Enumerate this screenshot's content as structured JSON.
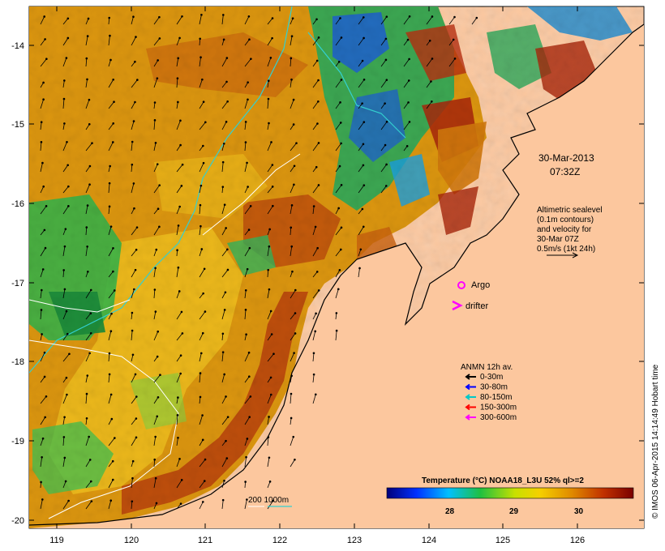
{
  "axes": {
    "lon_ticks": [
      "119",
      "120",
      "121",
      "122",
      "123",
      "124",
      "125",
      "126"
    ],
    "lat_ticks": [
      "-14",
      "-15",
      "-16",
      "-17",
      "-18",
      "-19",
      "-20"
    ]
  },
  "timestamp": {
    "date": "30-Mar-2013",
    "time": "07:32Z"
  },
  "altimetry_note": [
    "Altimetric sealevel",
    "(0.1m contours)",
    "and velocity for",
    "30-Mar 07Z",
    "0.5m/s (1kt 24h)"
  ],
  "markers": {
    "argo": "Argo",
    "drifter": "drifter"
  },
  "anmn": {
    "title": "ANMN 12h av.",
    "items": [
      {
        "label": "0-30m",
        "color": "#000000"
      },
      {
        "label": "30-80m",
        "color": "#0000ff"
      },
      {
        "label": "80-150m",
        "color": "#00c8c8"
      },
      {
        "label": "150-300m",
        "color": "#ff0000"
      },
      {
        "label": "300-600m",
        "color": "#ff00ff"
      }
    ]
  },
  "colorbar": {
    "title": "Temperature (°C) NOAA18_L3U 52% ql>=2",
    "ticks": [
      "28",
      "29",
      "30"
    ]
  },
  "depth_legend": "200 1000m",
  "credit": "© IMOS 06-Apr-2015 14:14:49 Hobart time",
  "colors": {
    "land": "#fcc79e",
    "warm": "#d98a0c",
    "hot": "#a0290a",
    "mid": "#f2c01a",
    "cool": "#29b54a",
    "cold": "#1c5fd0",
    "contour_cyan": "#33d0d0"
  }
}
